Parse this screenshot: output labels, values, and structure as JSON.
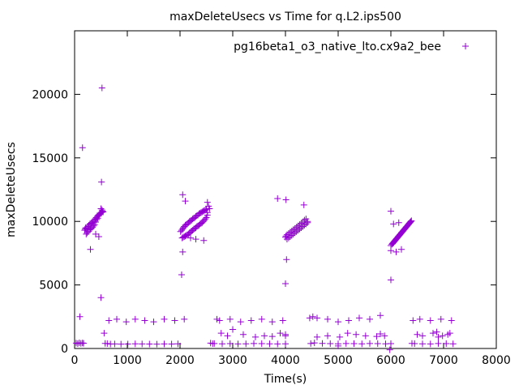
{
  "chart_data": {
    "type": "scatter",
    "title": "maxDeleteUsecs vs Time for q.L2.ips500",
    "xlabel": "Time(s)",
    "ylabel": "maxDeleteUsecs",
    "xlim": [
      0,
      8000
    ],
    "ylim": [
      0,
      25000
    ],
    "xticks": [
      0,
      1000,
      2000,
      3000,
      4000,
      5000,
      6000,
      7000,
      8000
    ],
    "yticks": [
      0,
      5000,
      10000,
      15000,
      20000
    ],
    "grid": false,
    "legend_position": "top-right",
    "marker": "plus",
    "color": "#9400d3",
    "series": [
      {
        "name": "pg16beta1_o3_native_lto.cx9a2_bee",
        "x": [
          30,
          60,
          90,
          120,
          150,
          170,
          190,
          210,
          230,
          250,
          270,
          290,
          310,
          330,
          350,
          370,
          390,
          410,
          430,
          450,
          470,
          490,
          510,
          530,
          540,
          520,
          500,
          480,
          460,
          440,
          420,
          400,
          380,
          360,
          340,
          320,
          300,
          280,
          260,
          240,
          220,
          200,
          520,
          510,
          500,
          300,
          400,
          460,
          100,
          150,
          580,
          620,
          680,
          760,
          880,
          1010,
          1150,
          1280,
          1420,
          1560,
          1700,
          1840,
          1960,
          560,
          650,
          800,
          980,
          1150,
          1330,
          1500,
          1700,
          1900,
          2080,
          2010,
          2030,
          2050,
          2060,
          2080,
          2100,
          2120,
          2140,
          2160,
          2180,
          2200,
          2220,
          2240,
          2260,
          2280,
          2300,
          2320,
          2340,
          2360,
          2380,
          2400,
          2420,
          2440,
          2460,
          2480,
          2500,
          2520,
          2520,
          2500,
          2480,
          2460,
          2440,
          2420,
          2400,
          2380,
          2360,
          2340,
          2320,
          2300,
          2280,
          2260,
          2240,
          2220,
          2200,
          2180,
          2160,
          2140,
          2120,
          2100,
          2080,
          2060,
          2040,
          2050,
          2050,
          2030,
          2520,
          2540,
          2560,
          2100,
          2300,
          2450,
          2200,
          2580,
          2650,
          2800,
          2950,
          3100,
          3250,
          3400,
          3550,
          3700,
          3850,
          4000,
          2620,
          2750,
          2950,
          3150,
          3350,
          3550,
          3750,
          3950,
          2700,
          2780,
          2900,
          3000,
          3200,
          3430,
          3600,
          3750,
          3900,
          4000,
          4000,
          4030,
          4060,
          4090,
          4120,
          4150,
          4180,
          4210,
          4240,
          4270,
          4300,
          4330,
          4360,
          4390,
          4420,
          4420,
          4390,
          4360,
          4330,
          4300,
          4270,
          4240,
          4210,
          4180,
          4150,
          4120,
          4090,
          4060,
          4030,
          4010,
          4000,
          4010,
          4020,
          4000,
          4350,
          3850,
          4460,
          4550,
          4700,
          4850,
          5000,
          5150,
          5300,
          5450,
          5600,
          5750,
          5900,
          6000,
          4480,
          4600,
          4800,
          5000,
          5200,
          5400,
          5600,
          5800,
          4520,
          4800,
          5030,
          5180,
          5340,
          5520,
          5730,
          5800,
          5880,
          4600,
          5000,
          5980,
          6000,
          6020,
          6040,
          6060,
          6080,
          6100,
          6120,
          6140,
          6160,
          6180,
          6200,
          6220,
          6240,
          6260,
          6280,
          6300,
          6320,
          6340,
          6360,
          6380,
          6390,
          6370,
          6350,
          6330,
          6310,
          6290,
          6270,
          6250,
          6230,
          6210,
          6190,
          6170,
          6150,
          6130,
          6110,
          6090,
          6070,
          6050,
          6030,
          6000,
          6000,
          6000,
          6100,
          6200,
          6050,
          6150,
          6400,
          6450,
          6600,
          6750,
          6900,
          7050,
          7180,
          6420,
          6550,
          6750,
          6950,
          7150,
          6500,
          6800,
          6870,
          6980,
          7080,
          7120,
          6600,
          6900
        ],
        "y": [
          420,
          380,
          450,
          400,
          430,
          410,
          9300,
          9500,
          9450,
          9600,
          9700,
          9800,
          9850,
          9900,
          10000,
          10100,
          10200,
          10300,
          10400,
          10500,
          10550,
          10600,
          10700,
          10800,
          10750,
          10900,
          11000,
          10650,
          10450,
          10250,
          10150,
          9950,
          9750,
          9650,
          9550,
          9450,
          9400,
          9350,
          9200,
          9100,
          9000,
          9400,
          20500,
          13100,
          4000,
          7800,
          9000,
          8800,
          2500,
          15800,
          400,
          380,
          350,
          360,
          340,
          350,
          370,
          360,
          350,
          340,
          360,
          350,
          370,
          1200,
          2200,
          2300,
          2100,
          2300,
          2200,
          2100,
          2300,
          2200,
          2300,
          9200,
          9300,
          9400,
          9500,
          9600,
          9700,
          9750,
          9800,
          9900,
          10000,
          10050,
          10100,
          10200,
          10250,
          10300,
          10400,
          10450,
          10500,
          10600,
          10650,
          10700,
          10750,
          10800,
          10850,
          10900,
          10950,
          10700,
          10500,
          10300,
          10200,
          10100,
          10000,
          9900,
          9850,
          9800,
          9700,
          9650,
          9600,
          9500,
          9450,
          9400,
          9300,
          9250,
          9150,
          9100,
          9000,
          8950,
          8900,
          8850,
          8800,
          8750,
          8700,
          7600,
          12100,
          5800,
          11500,
          11200,
          11000,
          11600,
          8600,
          8500,
          8700,
          420,
          390,
          370,
          380,
          360,
          370,
          390,
          380,
          370,
          360,
          370,
          380,
          2200,
          2300,
          2100,
          2200,
          2300,
          2100,
          2200,
          2300,
          1200,
          1000,
          1500,
          1100,
          900,
          1000,
          950,
          1200,
          1100,
          1000,
          8600,
          8700,
          8800,
          8900,
          9000,
          9100,
          9200,
          9300,
          9400,
          9500,
          9600,
          9700,
          9800,
          9900,
          10000,
          10200,
          10100,
          9950,
          9850,
          9750,
          9650,
          9550,
          9450,
          9350,
          9250,
          9150,
          9050,
          8950,
          8850,
          8750,
          11700,
          7000,
          5100,
          11300,
          11800,
          2400,
          440,
          400,
          380,
          370,
          390,
          380,
          370,
          390,
          380,
          370,
          380,
          390,
          2400,
          2300,
          2100,
          2200,
          2400,
          2300,
          2600,
          2500,
          1000,
          900,
          1200,
          1100,
          1000,
          950,
          1150,
          1000,
          900,
          200,
          -100,
          8100,
          8200,
          8300,
          8400,
          8500,
          8600,
          8700,
          8800,
          8900,
          9000,
          9100,
          9200,
          9300,
          9400,
          9500,
          9600,
          9700,
          9800,
          9900,
          10000,
          10050,
          9950,
          9850,
          9750,
          9650,
          9550,
          9450,
          9350,
          9250,
          9150,
          9050,
          8950,
          8850,
          8750,
          8650,
          8550,
          8450,
          8350,
          8250,
          10800,
          7700,
          5400,
          7600,
          7800,
          9800,
          9900,
          400,
          380,
          370,
          360,
          390,
          380,
          370,
          2200,
          2300,
          2200,
          2300,
          2200,
          1100,
          1200,
          1300,
          1000,
          1100,
          1200,
          1000,
          900
        ]
      }
    ]
  }
}
